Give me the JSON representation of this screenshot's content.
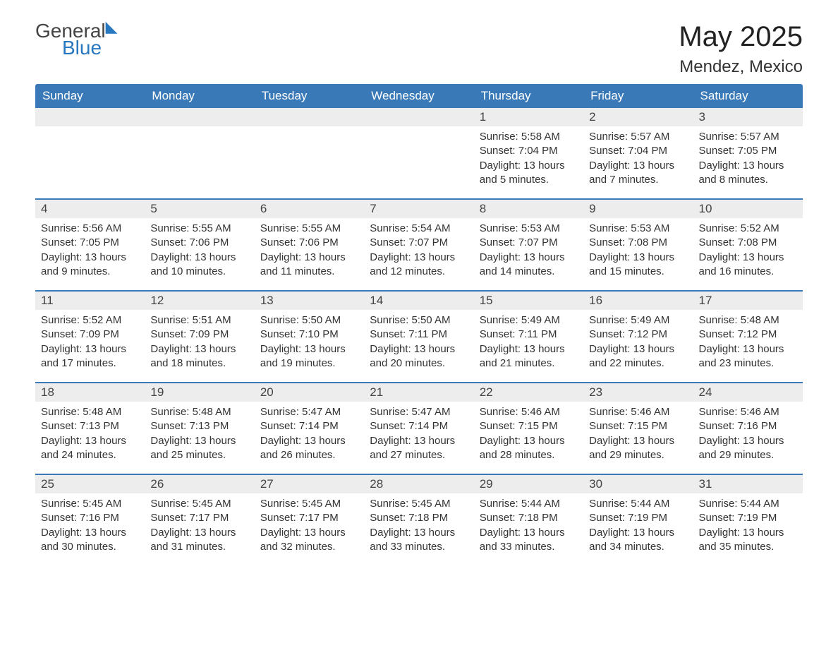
{
  "logo": {
    "general": "General",
    "blue": "Blue"
  },
  "title": "May 2025",
  "location": "Mendez, Mexico",
  "dayNames": [
    "Sunday",
    "Monday",
    "Tuesday",
    "Wednesday",
    "Thursday",
    "Friday",
    "Saturday"
  ],
  "colors": {
    "header_bg": "#3a79b7",
    "header_text": "#ffffff",
    "daynum_bg": "#ededed",
    "border": "#3a79b7",
    "text": "#333333",
    "logo_blue": "#2878c0"
  },
  "weeks": [
    [
      {
        "day": "",
        "lines": []
      },
      {
        "day": "",
        "lines": []
      },
      {
        "day": "",
        "lines": []
      },
      {
        "day": "",
        "lines": []
      },
      {
        "day": "1",
        "lines": [
          "Sunrise: 5:58 AM",
          "Sunset: 7:04 PM",
          "Daylight: 13 hours and 5 minutes."
        ]
      },
      {
        "day": "2",
        "lines": [
          "Sunrise: 5:57 AM",
          "Sunset: 7:04 PM",
          "Daylight: 13 hours and 7 minutes."
        ]
      },
      {
        "day": "3",
        "lines": [
          "Sunrise: 5:57 AM",
          "Sunset: 7:05 PM",
          "Daylight: 13 hours and 8 minutes."
        ]
      }
    ],
    [
      {
        "day": "4",
        "lines": [
          "Sunrise: 5:56 AM",
          "Sunset: 7:05 PM",
          "Daylight: 13 hours and 9 minutes."
        ]
      },
      {
        "day": "5",
        "lines": [
          "Sunrise: 5:55 AM",
          "Sunset: 7:06 PM",
          "Daylight: 13 hours and 10 minutes."
        ]
      },
      {
        "day": "6",
        "lines": [
          "Sunrise: 5:55 AM",
          "Sunset: 7:06 PM",
          "Daylight: 13 hours and 11 minutes."
        ]
      },
      {
        "day": "7",
        "lines": [
          "Sunrise: 5:54 AM",
          "Sunset: 7:07 PM",
          "Daylight: 13 hours and 12 minutes."
        ]
      },
      {
        "day": "8",
        "lines": [
          "Sunrise: 5:53 AM",
          "Sunset: 7:07 PM",
          "Daylight: 13 hours and 14 minutes."
        ]
      },
      {
        "day": "9",
        "lines": [
          "Sunrise: 5:53 AM",
          "Sunset: 7:08 PM",
          "Daylight: 13 hours and 15 minutes."
        ]
      },
      {
        "day": "10",
        "lines": [
          "Sunrise: 5:52 AM",
          "Sunset: 7:08 PM",
          "Daylight: 13 hours and 16 minutes."
        ]
      }
    ],
    [
      {
        "day": "11",
        "lines": [
          "Sunrise: 5:52 AM",
          "Sunset: 7:09 PM",
          "Daylight: 13 hours and 17 minutes."
        ]
      },
      {
        "day": "12",
        "lines": [
          "Sunrise: 5:51 AM",
          "Sunset: 7:09 PM",
          "Daylight: 13 hours and 18 minutes."
        ]
      },
      {
        "day": "13",
        "lines": [
          "Sunrise: 5:50 AM",
          "Sunset: 7:10 PM",
          "Daylight: 13 hours and 19 minutes."
        ]
      },
      {
        "day": "14",
        "lines": [
          "Sunrise: 5:50 AM",
          "Sunset: 7:11 PM",
          "Daylight: 13 hours and 20 minutes."
        ]
      },
      {
        "day": "15",
        "lines": [
          "Sunrise: 5:49 AM",
          "Sunset: 7:11 PM",
          "Daylight: 13 hours and 21 minutes."
        ]
      },
      {
        "day": "16",
        "lines": [
          "Sunrise: 5:49 AM",
          "Sunset: 7:12 PM",
          "Daylight: 13 hours and 22 minutes."
        ]
      },
      {
        "day": "17",
        "lines": [
          "Sunrise: 5:48 AM",
          "Sunset: 7:12 PM",
          "Daylight: 13 hours and 23 minutes."
        ]
      }
    ],
    [
      {
        "day": "18",
        "lines": [
          "Sunrise: 5:48 AM",
          "Sunset: 7:13 PM",
          "Daylight: 13 hours and 24 minutes."
        ]
      },
      {
        "day": "19",
        "lines": [
          "Sunrise: 5:48 AM",
          "Sunset: 7:13 PM",
          "Daylight: 13 hours and 25 minutes."
        ]
      },
      {
        "day": "20",
        "lines": [
          "Sunrise: 5:47 AM",
          "Sunset: 7:14 PM",
          "Daylight: 13 hours and 26 minutes."
        ]
      },
      {
        "day": "21",
        "lines": [
          "Sunrise: 5:47 AM",
          "Sunset: 7:14 PM",
          "Daylight: 13 hours and 27 minutes."
        ]
      },
      {
        "day": "22",
        "lines": [
          "Sunrise: 5:46 AM",
          "Sunset: 7:15 PM",
          "Daylight: 13 hours and 28 minutes."
        ]
      },
      {
        "day": "23",
        "lines": [
          "Sunrise: 5:46 AM",
          "Sunset: 7:15 PM",
          "Daylight: 13 hours and 29 minutes."
        ]
      },
      {
        "day": "24",
        "lines": [
          "Sunrise: 5:46 AM",
          "Sunset: 7:16 PM",
          "Daylight: 13 hours and 29 minutes."
        ]
      }
    ],
    [
      {
        "day": "25",
        "lines": [
          "Sunrise: 5:45 AM",
          "Sunset: 7:16 PM",
          "Daylight: 13 hours and 30 minutes."
        ]
      },
      {
        "day": "26",
        "lines": [
          "Sunrise: 5:45 AM",
          "Sunset: 7:17 PM",
          "Daylight: 13 hours and 31 minutes."
        ]
      },
      {
        "day": "27",
        "lines": [
          "Sunrise: 5:45 AM",
          "Sunset: 7:17 PM",
          "Daylight: 13 hours and 32 minutes."
        ]
      },
      {
        "day": "28",
        "lines": [
          "Sunrise: 5:45 AM",
          "Sunset: 7:18 PM",
          "Daylight: 13 hours and 33 minutes."
        ]
      },
      {
        "day": "29",
        "lines": [
          "Sunrise: 5:44 AM",
          "Sunset: 7:18 PM",
          "Daylight: 13 hours and 33 minutes."
        ]
      },
      {
        "day": "30",
        "lines": [
          "Sunrise: 5:44 AM",
          "Sunset: 7:19 PM",
          "Daylight: 13 hours and 34 minutes."
        ]
      },
      {
        "day": "31",
        "lines": [
          "Sunrise: 5:44 AM",
          "Sunset: 7:19 PM",
          "Daylight: 13 hours and 35 minutes."
        ]
      }
    ]
  ]
}
